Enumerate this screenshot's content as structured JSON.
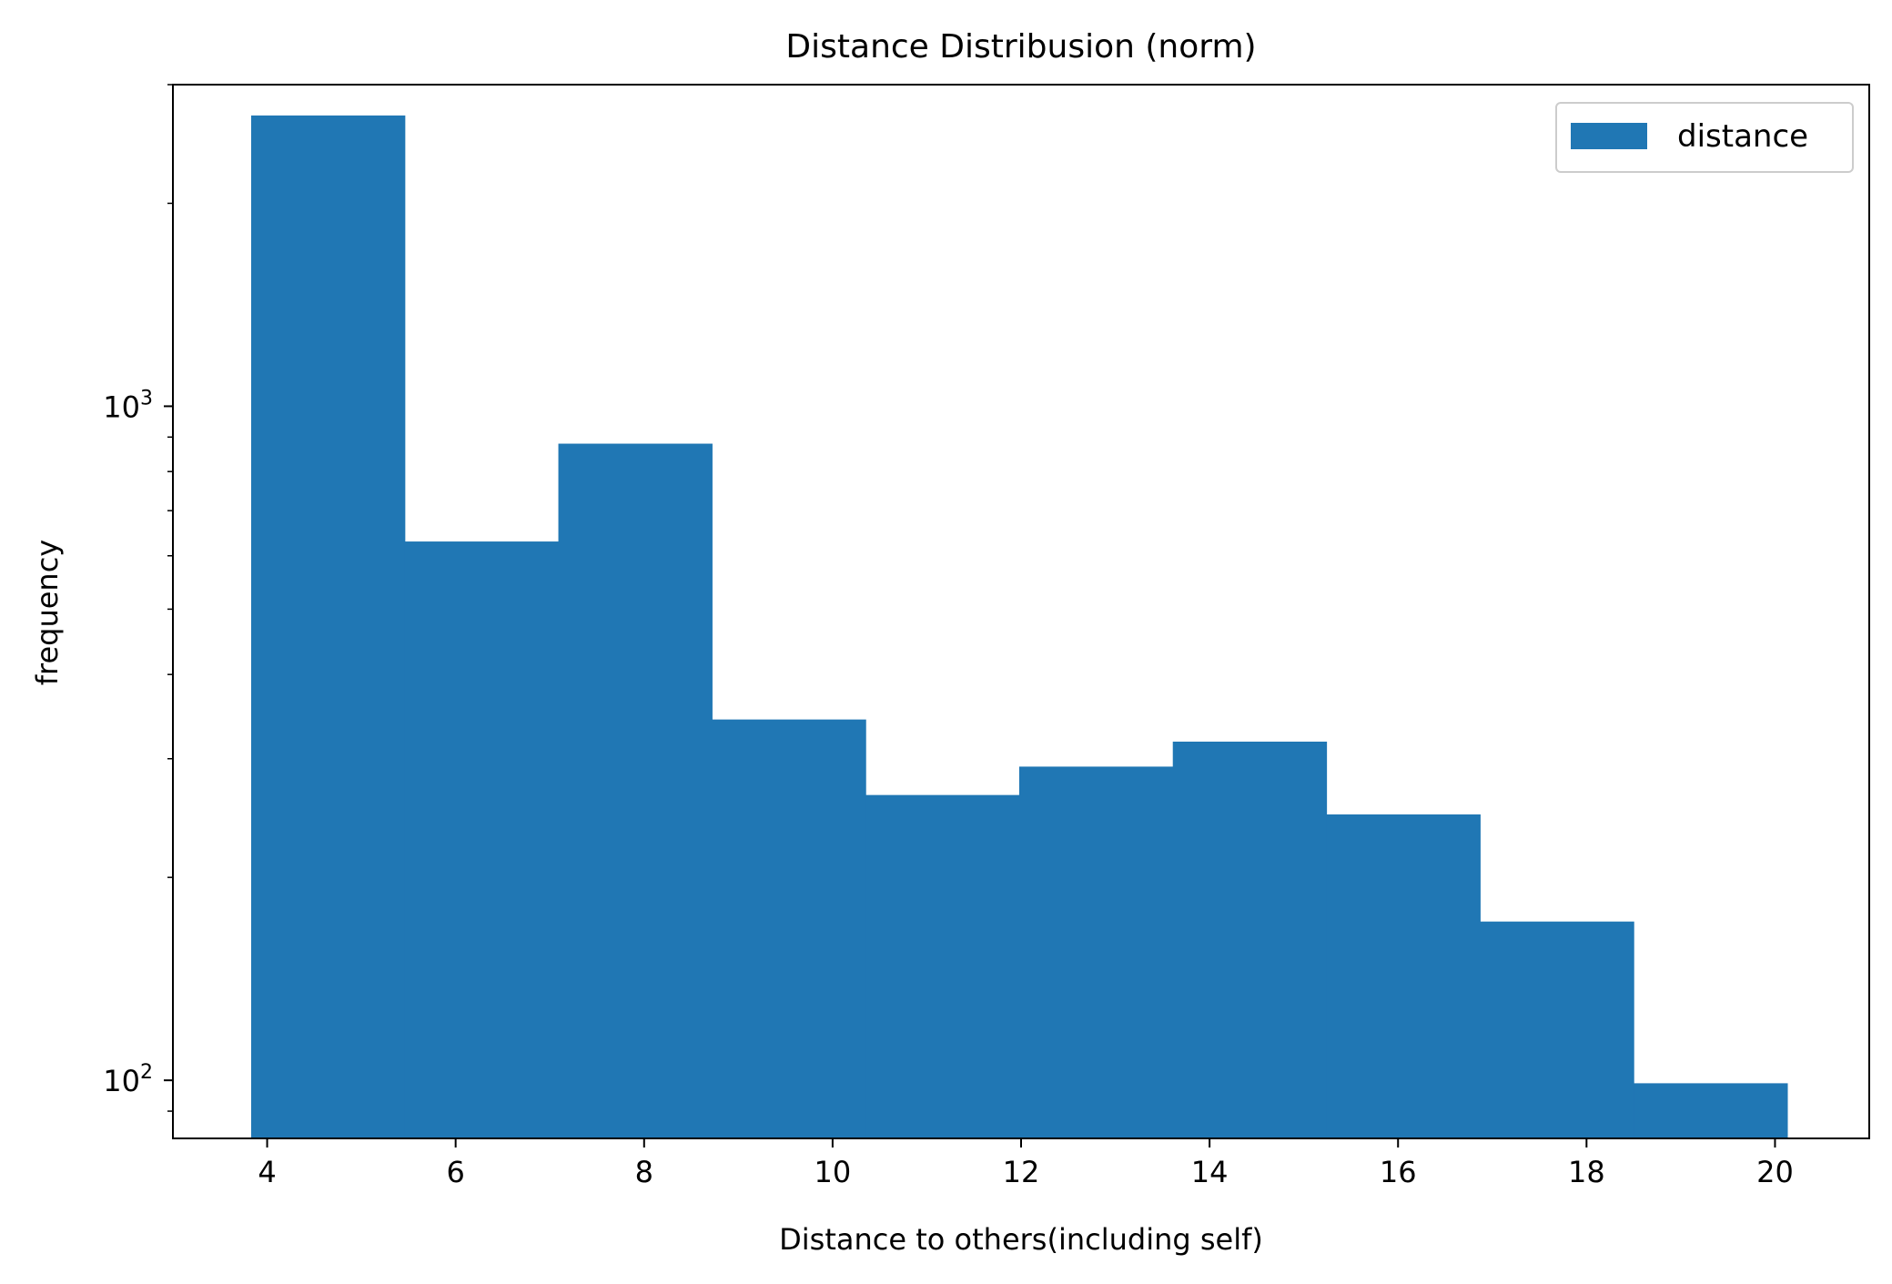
{
  "chart_data": {
    "type": "bar",
    "title": "Distance Distribusion (norm)",
    "xlabel": "Distance to others(including self)",
    "ylabel": "frequency",
    "yscale": "log",
    "xlim": [
      3.0,
      21.0
    ],
    "ylim": [
      82,
      3000
    ],
    "xticks": [
      4,
      6,
      8,
      10,
      12,
      14,
      16,
      18,
      20
    ],
    "yticks": [
      {
        "value": 100,
        "base": "10",
        "exp": "2"
      },
      {
        "value": 1000,
        "base": "10",
        "exp": "3"
      }
    ],
    "bin_edges": [
      3.83,
      5.46,
      7.09,
      8.72,
      10.35,
      11.98,
      13.61,
      15.24,
      16.87,
      18.5,
      20.13
    ],
    "series": [
      {
        "name": "distance",
        "color": "#2077b4",
        "values": [
          2700,
          630,
          880,
          343,
          265,
          292,
          318,
          248,
          172,
          99
        ]
      }
    ],
    "legend": {
      "position": "top-right",
      "label": "distance"
    },
    "grid": false
  }
}
